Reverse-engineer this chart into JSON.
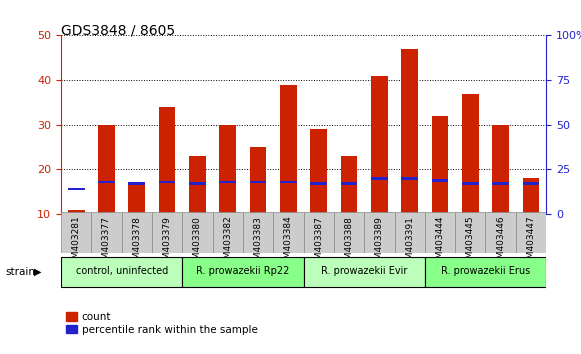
{
  "title": "GDS3848 / 8605",
  "samples": [
    "GSM403281",
    "GSM403377",
    "GSM403378",
    "GSM403379",
    "GSM403380",
    "GSM403382",
    "GSM403383",
    "GSM403384",
    "GSM403387",
    "GSM403388",
    "GSM403389",
    "GSM403391",
    "GSM403444",
    "GSM403445",
    "GSM403446",
    "GSM403447"
  ],
  "count_values": [
    11,
    30,
    17,
    34,
    23,
    30,
    25,
    39,
    29,
    23,
    41,
    47,
    32,
    37,
    30,
    18
  ],
  "percentile_values": [
    14,
    18,
    17,
    18,
    17,
    18,
    18,
    18,
    17,
    17,
    20,
    20,
    19,
    17,
    17,
    17
  ],
  "groups": [
    {
      "label": "control, uninfected",
      "start": 0,
      "end": 3
    },
    {
      "label": "R. prowazekii Rp22",
      "start": 4,
      "end": 7
    },
    {
      "label": "R. prowazekii Evir",
      "start": 8,
      "end": 11
    },
    {
      "label": "R. prowazekii Erus",
      "start": 12,
      "end": 15
    }
  ],
  "group_colors": [
    "#bbffbb",
    "#88ff88",
    "#bbffbb",
    "#88ff88"
  ],
  "ylim_left": [
    10,
    50
  ],
  "ylim_right": [
    0,
    100
  ],
  "yticks_left": [
    10,
    20,
    30,
    40,
    50
  ],
  "yticks_right": [
    0,
    25,
    50,
    75,
    100
  ],
  "bar_color_red": "#cc2200",
  "bar_color_blue": "#2222cc",
  "bar_width": 0.55,
  "left_label_color": "#cc2200",
  "right_label_color": "#2222cc",
  "legend_count": "count",
  "legend_pct": "percentile rank within the sample",
  "strain_label": "strain"
}
